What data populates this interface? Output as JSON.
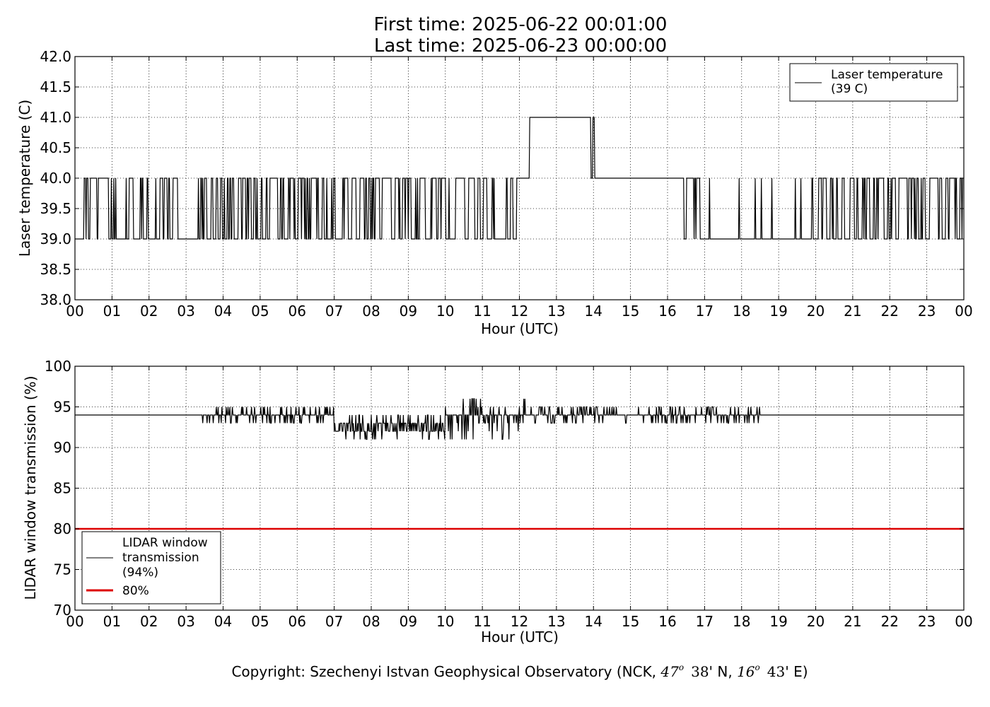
{
  "header": {
    "first_time": "First time: 2025-06-22 00:01:00",
    "last_time": "Last time: 2025-06-23 00:00:00"
  },
  "footer": {
    "copyright_prefix": "Copyright: Szechenyi Istvan Geophysical Observatory (NCK, ",
    "lat_deg": "47",
    "lat_min": "38",
    "lat_suffix": "' N, ",
    "lon_deg": "16",
    "lon_min": "43",
    "lon_suffix": "' E)",
    "degree_mark": "o"
  },
  "chart_data": [
    {
      "type": "line",
      "title": "",
      "xlabel": "Hour (UTC)",
      "ylabel": "Laser temperature (C)",
      "x_unit": "hour",
      "xlim": [
        0,
        24
      ],
      "ylim": [
        38.0,
        42.0
      ],
      "x_tick_labels": [
        "00",
        "01",
        "02",
        "03",
        "04",
        "05",
        "06",
        "07",
        "08",
        "09",
        "10",
        "11",
        "12",
        "13",
        "14",
        "15",
        "16",
        "17",
        "18",
        "19",
        "20",
        "21",
        "22",
        "23",
        "00"
      ],
      "y_tick_labels": [
        "38.0",
        "38.5",
        "39.0",
        "39.5",
        "40.0",
        "40.5",
        "41.0",
        "41.5",
        "42.0"
      ],
      "grid": true,
      "legend_position": "top-right",
      "legend": [
        {
          "label_lines": [
            "Laser temperature",
            "(39 C)"
          ],
          "color": "#000000"
        }
      ],
      "series": [
        {
          "name": "Laser temperature (39 C)",
          "color": "#000000",
          "sampling_minutes": 1,
          "segments": [
            {
              "start_hour": 0.0,
              "end_hour": 11.93,
              "pattern": "alternating",
              "values": [
                39.0,
                40.0
              ]
            },
            {
              "start_hour": 11.93,
              "end_hour": 12.28,
              "pattern": "constant",
              "values": [
                40.0
              ]
            },
            {
              "start_hour": 12.28,
              "end_hour": 13.92,
              "pattern": "constant",
              "values": [
                41.0
              ]
            },
            {
              "start_hour": 13.92,
              "end_hour": 14.05,
              "pattern": "alternating",
              "values": [
                40.0,
                41.0
              ]
            },
            {
              "start_hour": 14.05,
              "end_hour": 16.4,
              "pattern": "constant",
              "values": [
                40.0
              ]
            },
            {
              "start_hour": 16.4,
              "end_hour": 17.0,
              "pattern": "alternating",
              "values": [
                39.0,
                40.0
              ]
            },
            {
              "start_hour": 17.0,
              "end_hour": 19.9,
              "pattern": "sparse-spikes",
              "values": [
                39.0,
                40.0
              ]
            },
            {
              "start_hour": 19.9,
              "end_hour": 24.0,
              "pattern": "alternating",
              "values": [
                39.0,
                40.0
              ]
            }
          ]
        }
      ]
    },
    {
      "type": "line",
      "title": "",
      "xlabel": "Hour (UTC)",
      "ylabel": "LIDAR window transmission (%)",
      "x_unit": "hour",
      "xlim": [
        0,
        24
      ],
      "ylim": [
        70,
        100
      ],
      "x_tick_labels": [
        "00",
        "01",
        "02",
        "03",
        "04",
        "05",
        "06",
        "07",
        "08",
        "09",
        "10",
        "11",
        "12",
        "13",
        "14",
        "15",
        "16",
        "17",
        "18",
        "19",
        "20",
        "21",
        "22",
        "23",
        "00"
      ],
      "y_tick_labels": [
        "70",
        "75",
        "80",
        "85",
        "90",
        "95",
        "100"
      ],
      "grid": true,
      "legend_position": "lower-left",
      "legend": [
        {
          "label_lines": [
            "LIDAR window",
            "transmission",
            "(94%)"
          ],
          "color": "#000000"
        },
        {
          "label_lines": [
            "80%"
          ],
          "color": "#dd0000"
        }
      ],
      "series": [
        {
          "name": "LIDAR window transmission (94%)",
          "color": "#000000",
          "sampling_minutes": 1,
          "segments": [
            {
              "start_hour": 0.0,
              "end_hour": 3.3,
              "pattern": "constant",
              "values": [
                94
              ]
            },
            {
              "start_hour": 3.3,
              "end_hour": 7.0,
              "pattern": "jitter",
              "values": [
                93,
                94,
                95
              ]
            },
            {
              "start_hour": 7.0,
              "end_hour": 10.0,
              "pattern": "jitter",
              "values": [
                91,
                92,
                93,
                94
              ]
            },
            {
              "start_hour": 10.0,
              "end_hour": 12.2,
              "pattern": "jitter",
              "values": [
                91,
                92,
                93,
                94,
                95,
                96
              ]
            },
            {
              "start_hour": 12.2,
              "end_hour": 18.5,
              "pattern": "jitter",
              "values": [
                93,
                94,
                95
              ]
            },
            {
              "start_hour": 18.5,
              "end_hour": 24.0,
              "pattern": "constant",
              "values": [
                94
              ]
            }
          ]
        },
        {
          "name": "80%",
          "color": "#dd0000",
          "x": [
            0,
            24
          ],
          "values": [
            80,
            80
          ]
        }
      ]
    }
  ]
}
